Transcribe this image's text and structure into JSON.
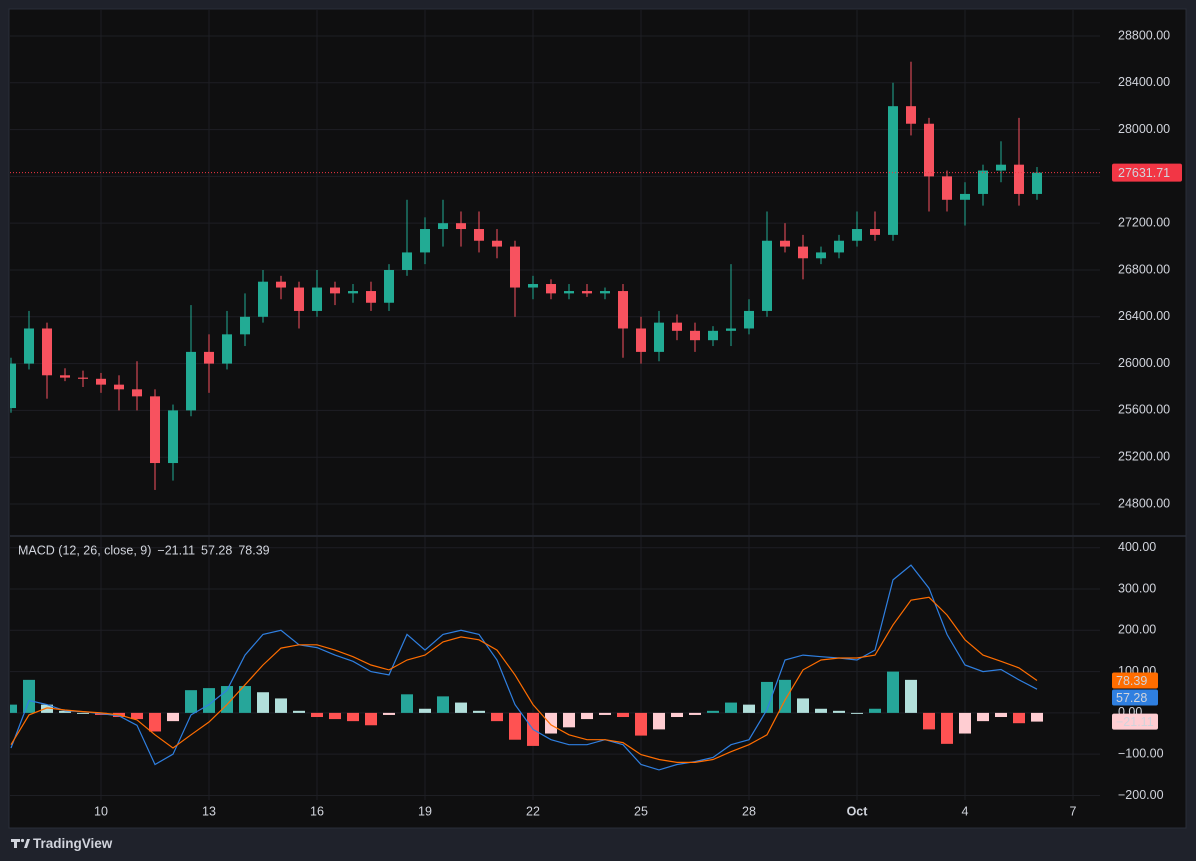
{
  "brand": "TradingView",
  "chart_data": [
    {
      "type": "candlestick",
      "x": [
        7.5,
        8,
        8.5,
        9,
        9.5,
        10,
        10.5,
        11,
        11.5,
        12,
        12.5,
        13,
        13.5,
        14,
        14.5,
        15,
        15.5,
        16,
        16.5,
        17,
        17.5,
        18,
        18.5,
        19,
        19.5,
        20,
        20.5,
        21,
        21.5,
        22,
        22.5,
        23,
        23.5,
        24,
        24.5,
        25,
        25.5,
        26,
        26.5,
        27,
        27.5,
        28,
        28.5,
        29,
        29.5,
        30,
        30.5,
        31,
        31.5,
        32,
        32.5,
        33,
        33.5,
        34,
        34.5,
        35,
        35.5,
        36
      ],
      "open": [
        25620,
        26000,
        26300,
        25900,
        25880,
        25870,
        25820,
        25780,
        25720,
        25150,
        25600,
        26100,
        26000,
        26250,
        26400,
        26700,
        26650,
        26450,
        26650,
        26600,
        26620,
        26520,
        26800,
        26950,
        27150,
        27200,
        27150,
        27050,
        27000,
        26650,
        26680,
        26600,
        26620,
        26600,
        26620,
        26300,
        26100,
        26350,
        26280,
        26200,
        26280,
        26300,
        26450,
        27050,
        27000,
        26900,
        26950,
        27050,
        27150,
        27100,
        28200,
        28050,
        27600,
        27400,
        27450,
        27650,
        27700,
        27450
      ],
      "high": [
        26050,
        26450,
        26350,
        25960,
        25940,
        25920,
        25900,
        26020,
        25780,
        25650,
        26500,
        26250,
        26450,
        26600,
        26800,
        26750,
        26700,
        26800,
        26700,
        26680,
        26700,
        26850,
        27400,
        27250,
        27400,
        27300,
        27300,
        27150,
        27050,
        26750,
        26720,
        26680,
        26680,
        26650,
        26680,
        26400,
        26450,
        26420,
        26350,
        26320,
        26850,
        26550,
        27300,
        27200,
        27100,
        27000,
        27100,
        27300,
        27300,
        28400,
        28580,
        28100,
        27650,
        27550,
        27700,
        27900,
        28100,
        27680
      ],
      "low": [
        25580,
        25950,
        25700,
        25850,
        25800,
        25750,
        25600,
        25600,
        24920,
        25000,
        25550,
        25750,
        25950,
        26150,
        26350,
        26550,
        26300,
        26400,
        26500,
        26520,
        26450,
        26450,
        26750,
        26850,
        27000,
        27000,
        26950,
        26900,
        26400,
        26550,
        26550,
        26550,
        26570,
        26550,
        26050,
        26000,
        26020,
        26200,
        26100,
        26150,
        26150,
        26250,
        26400,
        26950,
        26720,
        26850,
        26900,
        27000,
        27050,
        27050,
        27950,
        27300,
        27300,
        27180,
        27350,
        27550,
        27350,
        27400
      ],
      "close": [
        26000,
        26300,
        25900,
        25880,
        25870,
        25820,
        25780,
        25720,
        25150,
        25600,
        26100,
        26000,
        26250,
        26400,
        26700,
        26650,
        26450,
        26650,
        26600,
        26620,
        26520,
        26800,
        26950,
        27150,
        27200,
        27150,
        27050,
        27000,
        26650,
        26680,
        26600,
        26620,
        26600,
        26620,
        26300,
        26100,
        26350,
        26280,
        26200,
        26280,
        26300,
        26450,
        27050,
        27000,
        26900,
        26950,
        27050,
        27150,
        27100,
        28200,
        28050,
        27600,
        27400,
        27450,
        27650,
        27700,
        27450,
        27631.71
      ],
      "colors": {
        "up": "#22ab94",
        "down": "#f7525f",
        "price_line": "#f23645"
      },
      "xlim": [
        7.472,
        37.75
      ],
      "ylim": [
        24535,
        29022
      ],
      "yticks": [
        {
          "value": 28800,
          "label": "28800.00"
        },
        {
          "value": 28400,
          "label": "28400.00"
        },
        {
          "value": 28000,
          "label": "28000.00"
        },
        {
          "value": 27600,
          "label": "27600.00"
        },
        {
          "value": 27200,
          "label": "27200.00"
        },
        {
          "value": 26800,
          "label": "26800.00"
        },
        {
          "value": 26400,
          "label": "26400.00"
        },
        {
          "value": 26000,
          "label": "26000.00"
        },
        {
          "value": 25600,
          "label": "25600.00"
        },
        {
          "value": 25200,
          "label": "25200.00"
        },
        {
          "value": 24800,
          "label": "24800.00"
        }
      ],
      "grid": true
    },
    {
      "type": "macd",
      "label": "MACD (12, 26, close, 9)",
      "series": [
        {
          "color": "#2f7fe0",
          "values": [
            -85,
            30,
            20,
            5,
            3,
            -2,
            -7,
            -30,
            -125,
            -100,
            -5,
            20,
            55,
            140,
            190,
            200,
            165,
            158,
            140,
            125,
            100,
            92,
            190,
            152,
            190,
            200,
            190,
            128,
            20,
            -40,
            -65,
            -77,
            -77,
            -65,
            -77,
            -125,
            -138,
            -125,
            -118,
            -108,
            -77,
            -65,
            8,
            128,
            140,
            136,
            133,
            128,
            152,
            322,
            358,
            302,
            190,
            116,
            100,
            105,
            80,
            57.28
          ]
        },
        {
          "color": "#ff6d00",
          "values": [
            -77,
            -5,
            12,
            7,
            3,
            0,
            -5,
            -17,
            -53,
            -85,
            -53,
            -22,
            20,
            68,
            116,
            157,
            165,
            165,
            152,
            136,
            116,
            104,
            128,
            140,
            172,
            184,
            177,
            152,
            92,
            20,
            -29,
            -53,
            -65,
            -65,
            -72,
            -101,
            -113,
            -120,
            -120,
            -113,
            -94,
            -77,
            -53,
            31,
            104,
            128,
            133,
            133,
            140,
            213,
            273,
            280,
            237,
            177,
            140,
            125,
            109,
            78.39
          ]
        }
      ],
      "histogram": {
        "values": [
          20,
          80,
          20,
          5,
          0,
          -5,
          -10,
          -15,
          -45,
          -20,
          55,
          60,
          65,
          65,
          50,
          35,
          5,
          -10,
          -15,
          -20,
          -30,
          -5,
          45,
          10,
          40,
          25,
          5,
          -20,
          -65,
          -80,
          -50,
          -35,
          -15,
          -5,
          -10,
          -55,
          -40,
          -10,
          -5,
          5,
          25,
          20,
          75,
          80,
          35,
          10,
          5,
          0,
          10,
          100,
          80,
          -40,
          -75,
          -50,
          -20,
          -10,
          -25,
          -21.11
        ],
        "value_labels": [
          null,
          null,
          null,
          null,
          null,
          null,
          null,
          null,
          null,
          null,
          null,
          null,
          null,
          null,
          null,
          null,
          null,
          null,
          null,
          null,
          null,
          null,
          null,
          null,
          null,
          null,
          null,
          null,
          null,
          null,
          null,
          null,
          null,
          null,
          null,
          null,
          null,
          null,
          null,
          null,
          null,
          null,
          null,
          null,
          null,
          null,
          null,
          null,
          null,
          null,
          null,
          null,
          null,
          null,
          null,
          null,
          null,
          "−21.11"
        ],
        "colors": {
          "pos_up": "#26a69a",
          "pos_down": "#b2dfdb",
          "neg_down": "#ff5252",
          "neg_up": "#ffcdd2"
        }
      },
      "ylim": [
        -211,
        426
      ],
      "yticks": [
        {
          "value": 400,
          "label": "400.00"
        },
        {
          "value": 300,
          "label": "300.00"
        },
        {
          "value": 200,
          "label": "200.00"
        },
        {
          "value": 100,
          "label": "100.00"
        },
        {
          "value": 0,
          "label": "0.00"
        },
        {
          "value": -100,
          "label": "−100.00"
        },
        {
          "value": -200,
          "label": "−200.00"
        }
      ],
      "xticks": [
        10,
        13,
        16,
        19,
        22,
        25,
        28,
        {
          "value": 31,
          "label": "Oct"
        },
        {
          "value": 34,
          "label": "4"
        },
        {
          "value": 37,
          "label": "7"
        }
      ],
      "grid": true
    }
  ]
}
